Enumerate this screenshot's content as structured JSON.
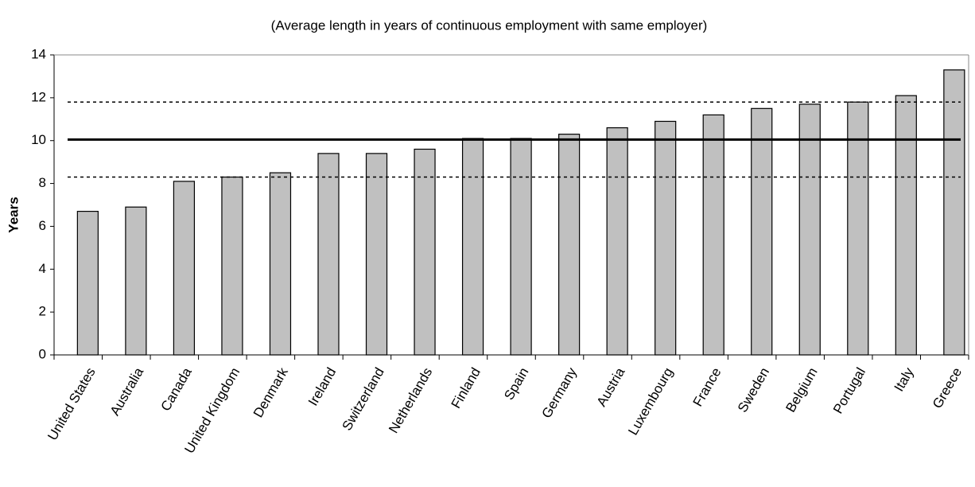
{
  "chart_data": {
    "type": "bar",
    "subtitle": "(Average length in years of continuous employment with same employer)",
    "y_label": "Years",
    "categories": [
      "United States",
      "Australia",
      "Canada",
      "United Kingdom",
      "Denmark",
      "Ireland",
      "Switzerland",
      "Netherlands",
      "Finland",
      "Spain",
      "Germany",
      "Austria",
      "Luxembourg",
      "France",
      "Sweden",
      "Belgium",
      "Portugal",
      "Italy",
      "Greece"
    ],
    "values": [
      6.7,
      6.9,
      8.1,
      8.3,
      8.5,
      9.4,
      9.4,
      9.6,
      10.1,
      10.1,
      10.3,
      10.6,
      10.9,
      11.2,
      11.5,
      11.7,
      11.8,
      12.1,
      13.3
    ],
    "color": "#c0c0c0",
    "reference_lines": [
      {
        "value": 10.05,
        "style": "solid"
      },
      {
        "value": 11.8,
        "style": "dashed"
      },
      {
        "value": 8.3,
        "style": "dashed"
      }
    ],
    "ylim": [
      0,
      14
    ],
    "yticks": [
      0,
      2,
      4,
      6,
      8,
      10,
      12,
      14
    ],
    "grid": false
  }
}
